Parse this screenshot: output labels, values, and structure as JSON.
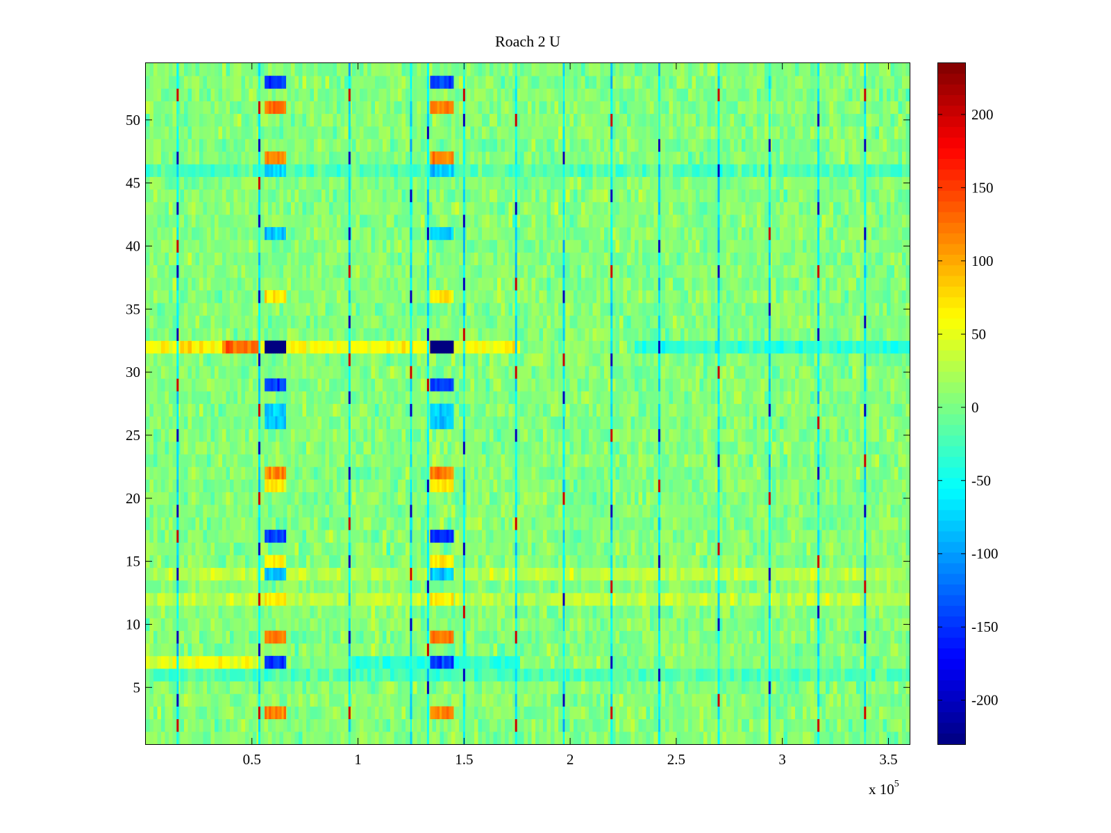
{
  "chart_data": {
    "type": "heatmap",
    "title": "Roach 2 U",
    "xlabel": "",
    "ylabel": "",
    "x_multiplier_label": "x 10",
    "x_multiplier_exponent": "5",
    "xlim": [
      0,
      360000
    ],
    "ylim": [
      0.5,
      54.5
    ],
    "rows": 54,
    "colormap": "jet",
    "clim": [
      -230,
      235
    ],
    "x_ticks": [
      0.5,
      1,
      1.5,
      2,
      2.5,
      3,
      3.5
    ],
    "x_tick_labels": [
      "0.5",
      "1",
      "1.5",
      "2",
      "2.5",
      "3",
      "3.5"
    ],
    "y_ticks": [
      5,
      10,
      15,
      20,
      25,
      30,
      35,
      40,
      45,
      50
    ],
    "y_tick_labels": [
      "5",
      "10",
      "15",
      "20",
      "25",
      "30",
      "35",
      "40",
      "45",
      "50"
    ],
    "colorbar_ticks": [
      200,
      150,
      100,
      50,
      0,
      -50,
      -100,
      -150,
      -200
    ],
    "colorbar_tick_labels": [
      "200",
      "150",
      "100",
      "50",
      "0",
      "-50",
      "-100",
      "-150",
      "-200"
    ],
    "vertical_stripes": [
      {
        "x": 15000,
        "low_rows": [
          47,
          43,
          38,
          33,
          25,
          19,
          14,
          9,
          4
        ],
        "high_rows": [
          52,
          40,
          29,
          17,
          2
        ]
      },
      {
        "x": 53500,
        "low_rows": [
          48,
          42,
          36,
          31,
          24,
          16,
          8
        ],
        "high_rows": [
          51,
          45,
          27,
          20,
          12,
          3
        ]
      },
      {
        "x": 96000,
        "low_rows": [
          47,
          41,
          34,
          28,
          22,
          15,
          9
        ],
        "high_rows": [
          52,
          38,
          31,
          18,
          3
        ]
      },
      {
        "x": 125000,
        "low_rows": [
          44,
          36,
          27,
          19,
          10
        ],
        "high_rows": [
          30,
          14
        ]
      },
      {
        "x": 133000,
        "low_rows": [
          49,
          41,
          33,
          21,
          13,
          5
        ],
        "high_rows": [
          29,
          8
        ]
      },
      {
        "x": 150000,
        "low_rows": [
          50,
          42,
          37,
          24,
          16,
          6
        ],
        "high_rows": [
          52,
          33,
          11
        ]
      },
      {
        "x": 174500,
        "low_rows": [
          43,
          25
        ],
        "high_rows": [
          50,
          37,
          30,
          18,
          9,
          2
        ]
      },
      {
        "x": 197000,
        "low_rows": [
          47,
          36,
          28,
          12,
          4
        ],
        "high_rows": [
          31,
          20
        ]
      },
      {
        "x": 219500,
        "low_rows": [
          44,
          31,
          19,
          7
        ],
        "high_rows": [
          50,
          38,
          25,
          13,
          3
        ]
      },
      {
        "x": 242000,
        "low_rows": [
          48,
          40,
          32,
          25,
          15,
          6
        ],
        "high_rows": [
          21
        ]
      },
      {
        "x": 270000,
        "low_rows": [
          46,
          38,
          23,
          10
        ],
        "high_rows": [
          52,
          30,
          16,
          4
        ]
      },
      {
        "x": 294000,
        "low_rows": [
          48,
          35,
          27,
          14,
          5
        ],
        "high_rows": [
          41,
          20
        ]
      },
      {
        "x": 317000,
        "low_rows": [
          50,
          43,
          33,
          22,
          11
        ],
        "high_rows": [
          38,
          26,
          15,
          2
        ]
      },
      {
        "x": 339000,
        "low_rows": [
          48,
          41,
          34,
          27,
          19,
          9
        ],
        "high_rows": [
          52,
          23,
          13,
          3
        ]
      }
    ],
    "blocks": [
      {
        "x0": 56000,
        "x1": 66000,
        "rows": [
          32
        ],
        "value": -230
      },
      {
        "x0": 134000,
        "x1": 145000,
        "rows": [
          32
        ],
        "value": -230
      },
      {
        "x0": 36000,
        "x1": 53000,
        "rows": [
          32
        ],
        "value": 130
      },
      {
        "x0": 56000,
        "x1": 66000,
        "rows": [
          53,
          29,
          17,
          7
        ],
        "value": -145
      },
      {
        "x0": 134000,
        "x1": 145000,
        "rows": [
          53,
          29,
          17,
          7
        ],
        "value": -145
      },
      {
        "x0": 56000,
        "x1": 66000,
        "rows": [
          46,
          41,
          27,
          26,
          14
        ],
        "value": -80
      },
      {
        "x0": 134000,
        "x1": 145000,
        "rows": [
          46,
          41,
          27,
          26,
          14
        ],
        "value": -80
      },
      {
        "x0": 56000,
        "x1": 66000,
        "rows": [
          51,
          47,
          22,
          9,
          3
        ],
        "value": 120
      },
      {
        "x0": 134000,
        "x1": 145000,
        "rows": [
          51,
          47,
          22,
          9,
          3
        ],
        "value": 120
      },
      {
        "x0": 56000,
        "x1": 66000,
        "rows": [
          36,
          21,
          15,
          12
        ],
        "value": 70
      },
      {
        "x0": 134000,
        "x1": 145000,
        "rows": [
          36,
          21,
          15,
          12
        ],
        "value": 70
      }
    ],
    "row_biases": [
      {
        "row": 32,
        "x0": 0,
        "x1": 175000,
        "value": 55
      },
      {
        "row": 32,
        "x0": 230000,
        "x1": 360000,
        "value": -40
      },
      {
        "row": 7,
        "x0": 0,
        "x1": 55000,
        "value": 45
      },
      {
        "row": 7,
        "x0": 95000,
        "x1": 175000,
        "value": -40
      },
      {
        "row": 6,
        "x0": 0,
        "x1": 360000,
        "value": -25
      },
      {
        "row": 14,
        "x0": 0,
        "x1": 360000,
        "value": 25
      },
      {
        "row": 12,
        "x0": 0,
        "x1": 360000,
        "value": 25
      },
      {
        "row": 46,
        "x0": 0,
        "x1": 360000,
        "value": -25
      }
    ]
  }
}
